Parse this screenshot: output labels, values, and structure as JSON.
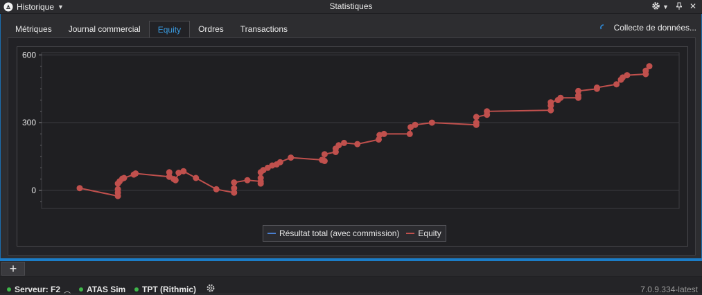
{
  "titlebar": {
    "app_label": "Historique",
    "window_title": "Statistiques"
  },
  "tabs": [
    {
      "label": "Métriques",
      "active": false
    },
    {
      "label": "Journal commercial",
      "active": false
    },
    {
      "label": "Equity",
      "active": true
    },
    {
      "label": "Ordres",
      "active": false
    },
    {
      "label": "Transactions",
      "active": false
    }
  ],
  "status_right": "Collecte de données...",
  "legend": [
    {
      "label": "Résultat total (avec commission)",
      "color": "#4a7fd0"
    },
    {
      "label": "Equity",
      "color": "#c0504d"
    }
  ],
  "chart_data": {
    "type": "line",
    "ylim": [
      -80,
      610
    ],
    "yticks": [
      0,
      300,
      600
    ],
    "grid": true,
    "legend_position": "bottom-center",
    "series": [
      {
        "name": "Equity",
        "color": "#c0504d",
        "x": [
          0,
          8.6,
          8.6,
          8.6,
          8.6,
          9,
          9.6,
          10,
          12.2,
          12.6,
          20.2,
          20.2,
          21.2,
          21.6,
          22.3,
          23.4,
          26.2,
          30.8,
          34.8,
          34.8,
          34.8,
          37.8,
          40.8,
          40.8,
          40.8,
          40.8,
          41.4,
          42.4,
          43.4,
          44.4,
          45.2,
          47.6,
          54.6,
          55.2,
          55.2,
          57.7,
          57.7,
          58.4,
          59.6,
          62.6,
          67.4,
          67.6,
          68.6,
          74.4,
          74.6,
          75.6,
          79.4,
          89.4,
          89.4,
          89.4,
          91.8,
          91.8,
          106.2,
          106.2,
          106.2,
          107.8,
          108.4,
          112.4,
          112.4,
          112.4,
          116.6,
          116.6,
          121,
          122,
          122.4,
          123.4,
          127.6,
          127.6,
          128.4
        ],
        "y": [
          10,
          -25,
          -10,
          5,
          30,
          40,
          52,
          55,
          70,
          75,
          60,
          80,
          50,
          45,
          78,
          85,
          55,
          5,
          -10,
          10,
          35,
          45,
          40,
          30,
          55,
          80,
          90,
          100,
          110,
          115,
          125,
          145,
          135,
          130,
          160,
          170,
          185,
          200,
          210,
          205,
          225,
          245,
          250,
          250,
          280,
          290,
          300,
          290,
          300,
          325,
          335,
          350,
          355,
          375,
          390,
          400,
          410,
          410,
          420,
          440,
          450,
          455,
          470,
          490,
          500,
          510,
          515,
          530,
          550
        ]
      },
      {
        "name": "Résultat total (avec commission)",
        "color": "#4a7fd0",
        "x": [],
        "y": []
      }
    ]
  },
  "statusbar": {
    "server": "Serveur: F2",
    "conn1": "ATAS Sim",
    "conn2": "TPT (Rithmic)",
    "version": "7.0.9.334-latest"
  },
  "icons": {
    "logo": "atas-logo-icon",
    "settings": "gear-icon",
    "pin": "pin-icon",
    "close": "close-icon",
    "add": "plus-icon",
    "spinner": "loading-spinner-icon"
  }
}
